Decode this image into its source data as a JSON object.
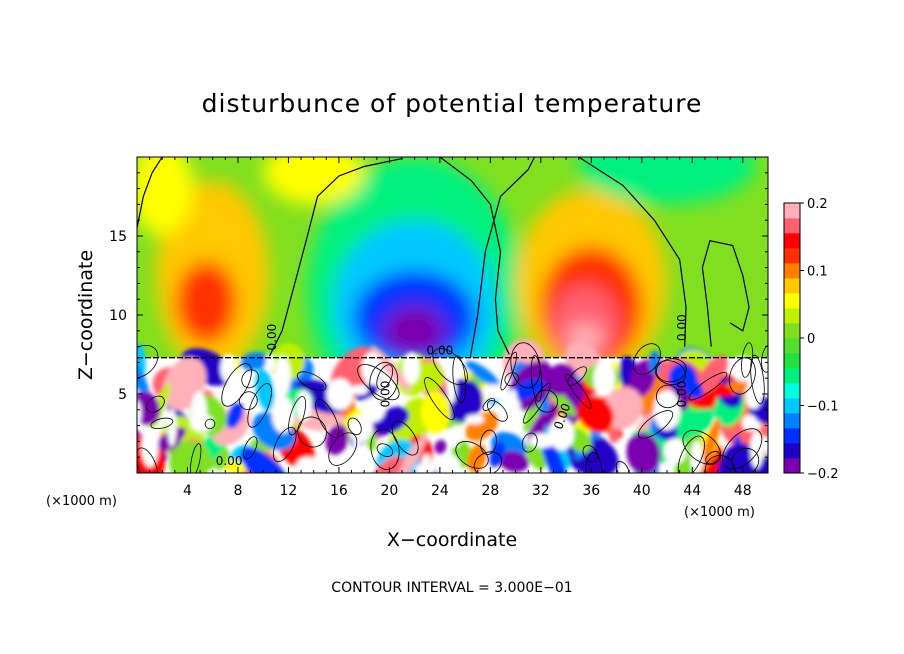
{
  "chart_data": {
    "type": "heatmap",
    "title": "disturbunce of potential temperature",
    "xlabel": "X−coordinate",
    "ylabel": "Z−coordinate",
    "x_unit": "(×1000 m)",
    "z_unit": "(×1000 m)",
    "xlim": [
      0,
      50
    ],
    "ylim": [
      0,
      20
    ],
    "x_ticks": [
      4,
      8,
      12,
      16,
      20,
      24,
      28,
      32,
      36,
      40,
      44,
      48
    ],
    "y_ticks": [
      5,
      10,
      15
    ],
    "colorbar": {
      "range": [
        -0.2,
        0.2
      ],
      "ticks": [
        -0.2,
        -0.1,
        0,
        0.1,
        0.2
      ],
      "tick_labels": [
        "−0.2",
        "−0.1",
        "0",
        "0.1",
        "0.2"
      ],
      "colors": [
        "#7a00b0",
        "#2000c8",
        "#0030ff",
        "#0080ff",
        "#00c8ff",
        "#00ffe0",
        "#00f080",
        "#20e040",
        "#50e030",
        "#80e020",
        "#c0f000",
        "#ffff00",
        "#ffc800",
        "#ff8000",
        "#ff3000",
        "#ff0000",
        "#ff6070",
        "#ffb0b8"
      ]
    },
    "contour_label": "0.00",
    "contour_interval_text": "CONTOUR INTERVAL = 3.000E−01",
    "features": [
      {
        "kind": "warm_anomaly",
        "x": 5.5,
        "z": 10.5,
        "value": 0.12
      },
      {
        "kind": "cold_anomaly",
        "x": 22,
        "z": 10.0,
        "value": -0.19
      },
      {
        "kind": "warm_anomaly",
        "x": 35.5,
        "z": 9.5,
        "value": 0.18
      },
      {
        "kind": "cold_anomaly",
        "x": 40,
        "z": 19.5,
        "value": -0.07
      },
      {
        "kind": "turbulent_layer",
        "z_top": 7.3,
        "value_range": [
          -0.2,
          0.2
        ]
      }
    ]
  }
}
